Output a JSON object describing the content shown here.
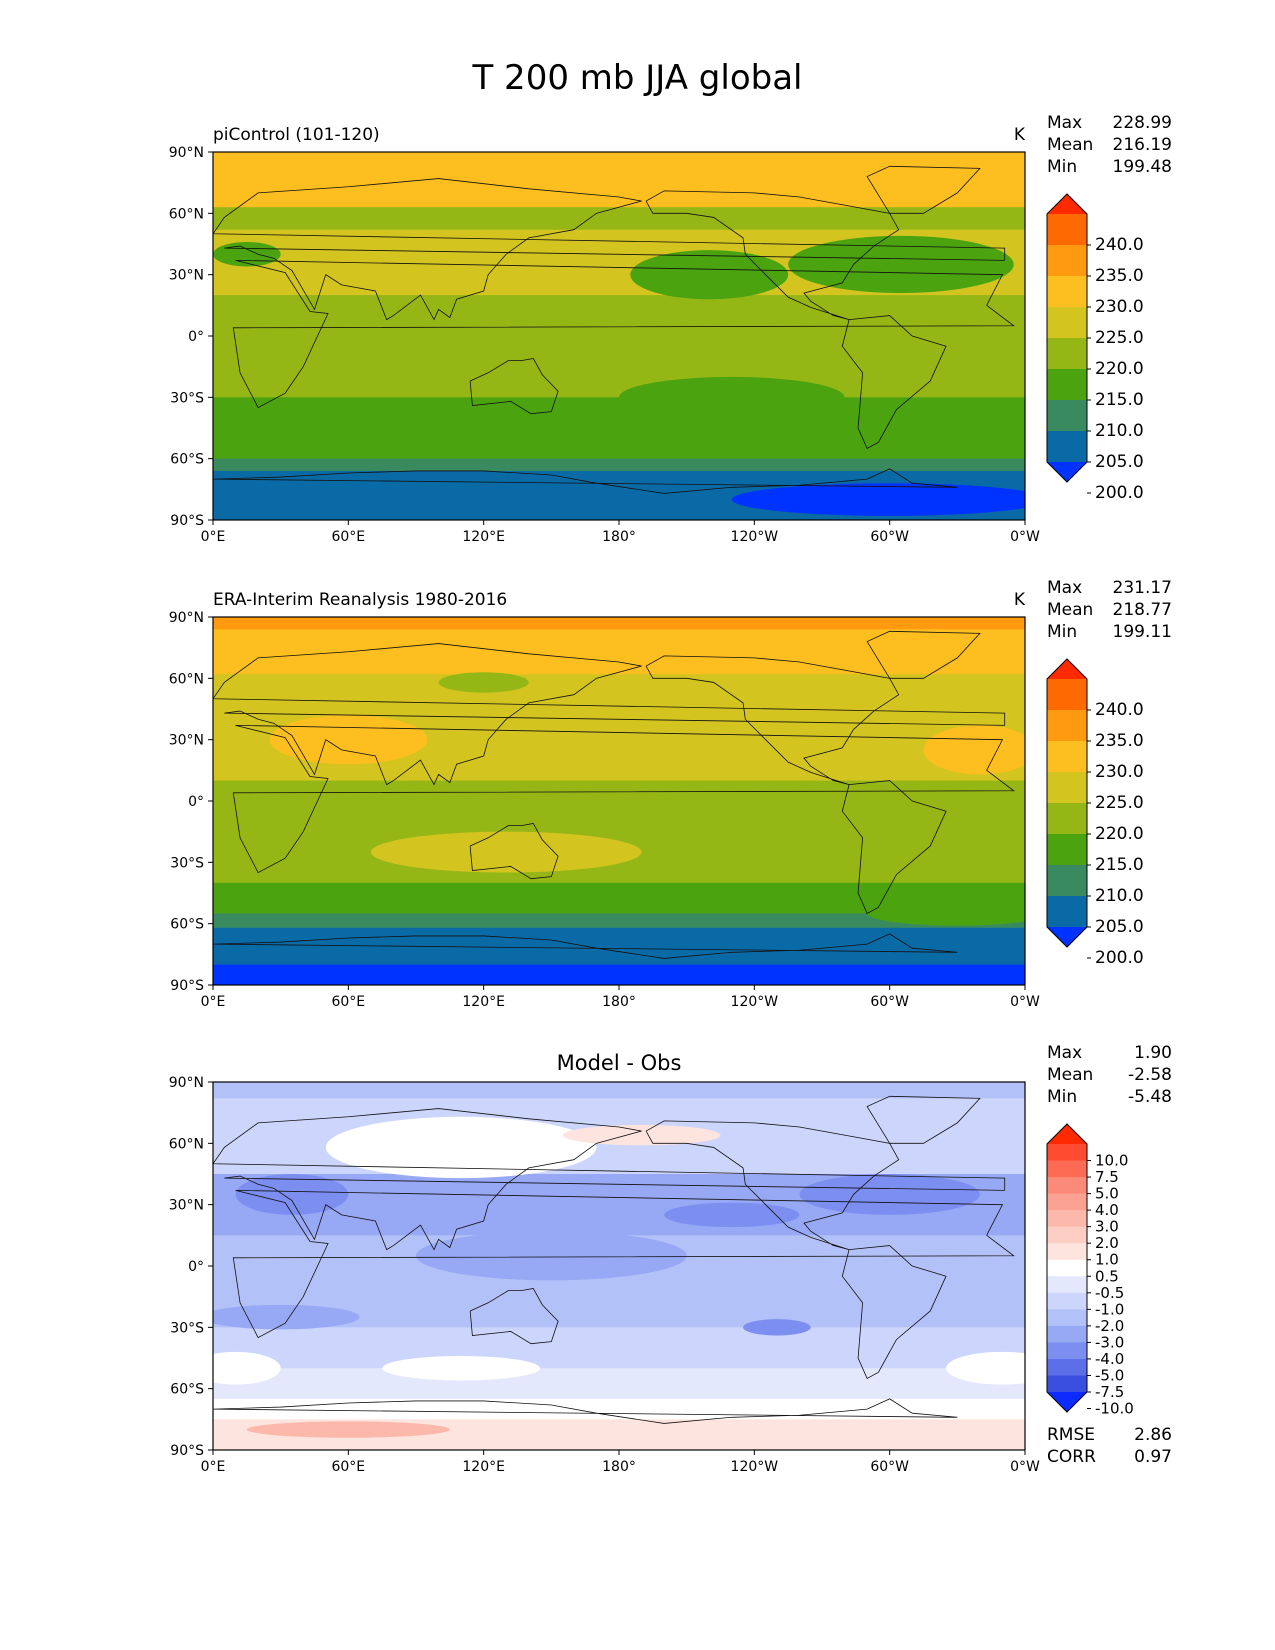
{
  "title": "T 200 mb JJA global",
  "x_ticks": [
    "0°E",
    "60°E",
    "120°E",
    "180°",
    "120°W",
    "60°W",
    "0°W"
  ],
  "y_ticks": [
    "90°N",
    "60°N",
    "30°N",
    "0°",
    "30°S",
    "60°S",
    "90°S"
  ],
  "panels": [
    {
      "title_left": "piControl (101-120)",
      "title_center": "",
      "units": "K",
      "stats": [
        {
          "label": "Max",
          "value": "228.99"
        },
        {
          "label": "Mean",
          "value": "216.19"
        },
        {
          "label": "Min",
          "value": "199.48"
        }
      ],
      "colorbar": {
        "levels": [
          "240.0",
          "235.0",
          "230.0",
          "225.0",
          "220.0",
          "215.0",
          "210.0",
          "205.0",
          "200.0"
        ],
        "colors": [
          "#ff2a00",
          "#ff6a00",
          "#ff9a10",
          "#fdbf1f",
          "#d4c420",
          "#95b716",
          "#4aa30f",
          "#3a8a60",
          "#0a6aa6",
          "#0033ff"
        ]
      },
      "bottom_stats": []
    },
    {
      "title_left": "ERA-Interim Reanalysis 1980-2016",
      "title_center": "",
      "units": "K",
      "stats": [
        {
          "label": "Max",
          "value": "231.17"
        },
        {
          "label": "Mean",
          "value": "218.77"
        },
        {
          "label": "Min",
          "value": "199.11"
        }
      ],
      "colorbar": {
        "levels": [
          "240.0",
          "235.0",
          "230.0",
          "225.0",
          "220.0",
          "215.0",
          "210.0",
          "205.0",
          "200.0"
        ],
        "colors": [
          "#ff2a00",
          "#ff6a00",
          "#ff9a10",
          "#fdbf1f",
          "#d4c420",
          "#95b716",
          "#4aa30f",
          "#3a8a60",
          "#0a6aa6",
          "#0033ff"
        ]
      },
      "bottom_stats": []
    },
    {
      "title_left": "",
      "title_center": "Model - Obs",
      "units": "",
      "stats": [
        {
          "label": "Max",
          "value": "1.90"
        },
        {
          "label": "Mean",
          "value": "-2.58"
        },
        {
          "label": "Min",
          "value": "-5.48"
        }
      ],
      "colorbar": {
        "levels": [
          "10.0",
          "7.5",
          "5.0",
          "4.0",
          "3.0",
          "2.0",
          "1.0",
          "0.5",
          "-0.5",
          "-1.0",
          "-2.0",
          "-3.0",
          "-4.0",
          "-5.0",
          "-7.5",
          "-10.0"
        ],
        "colors": [
          "#ff2a00",
          "#ff4b30",
          "#fd6b55",
          "#fb8a78",
          "#fba292",
          "#fcb8ab",
          "#fdcfc4",
          "#fde4de",
          "#ffffff",
          "#e4e8fc",
          "#ccd5fb",
          "#b3c1f9",
          "#97a8f5",
          "#7c8ff1",
          "#5c6fe9",
          "#3a4fe0",
          "#0d2aff"
        ]
      },
      "bottom_stats": [
        {
          "label": "RMSE",
          "value": "2.86"
        },
        {
          "label": "CORR",
          "value": "0.97"
        }
      ]
    }
  ]
}
